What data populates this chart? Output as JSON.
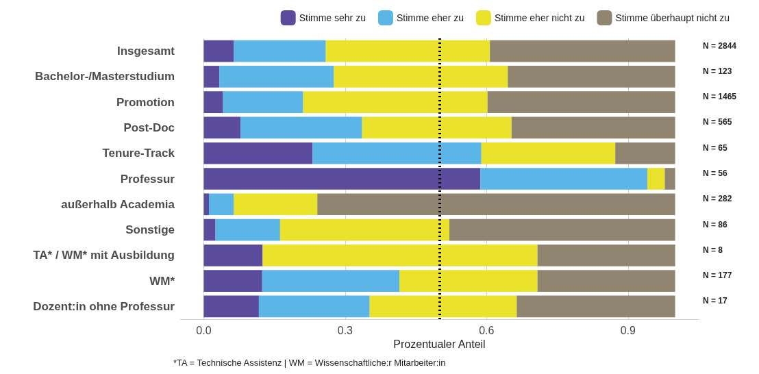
{
  "chart_data": {
    "type": "bar",
    "orientation": "horizontal",
    "stacked": true,
    "xlabel": "Prozentualer Anteil",
    "categories": [
      "Insgesamt",
      "Bachelor-/Masterstudium",
      "Promotion",
      "Post-Doc",
      "Tenure-Track",
      "Professur",
      "außerhalb Academia",
      "Sonstige",
      "TA* / WM* mit Ausbildung",
      "WM*",
      "Dozent:in ohne Professur"
    ],
    "series": [
      {
        "name": "Stimme sehr zu",
        "color": "#5b4b9d",
        "values": [
          0.064,
          0.033,
          0.041,
          0.078,
          0.231,
          0.587,
          0.011,
          0.025,
          0.125,
          0.124,
          0.117
        ]
      },
      {
        "name": "Stimme eher zu",
        "color": "#5bb5e6",
        "values": [
          0.195,
          0.243,
          0.17,
          0.258,
          0.358,
          0.354,
          0.053,
          0.137,
          0,
          0.291,
          0.235
        ]
      },
      {
        "name": "Stimme eher nicht zu",
        "color": "#ebe22c",
        "values": [
          0.348,
          0.369,
          0.391,
          0.317,
          0.284,
          0.037,
          0.177,
          0.359,
          0.583,
          0.293,
          0.312
        ]
      },
      {
        "name": "Stimme überhaupt nicht zu",
        "color": "#8f8571",
        "values": [
          0.393,
          0.355,
          0.398,
          0.347,
          0.127,
          0.022,
          0.759,
          0.479,
          0.292,
          0.292,
          0.336
        ]
      }
    ],
    "xlim": [
      -0.05,
      1.05
    ],
    "xticks": [
      {
        "value": 0,
        "label": "0.0"
      },
      0.3,
      0.6,
      0.9
    ],
    "ref_lines": [
      {
        "axis": "x",
        "value": 0.5,
        "color": "#000000",
        "line_style": "dotted"
      }
    ],
    "grid": "x",
    "legend": "top right",
    "annotations": [
      "N = 2844",
      "N = 123",
      "N = 1465",
      "N = 565",
      "N = 65",
      "N = 56",
      "N = 282",
      "N = 86",
      "N = 8",
      "N = 177",
      "N = 17",
      "*TA = Technische Assistenz | WM = Wissenschaftliche:r Mitarbeiter:in"
    ]
  }
}
